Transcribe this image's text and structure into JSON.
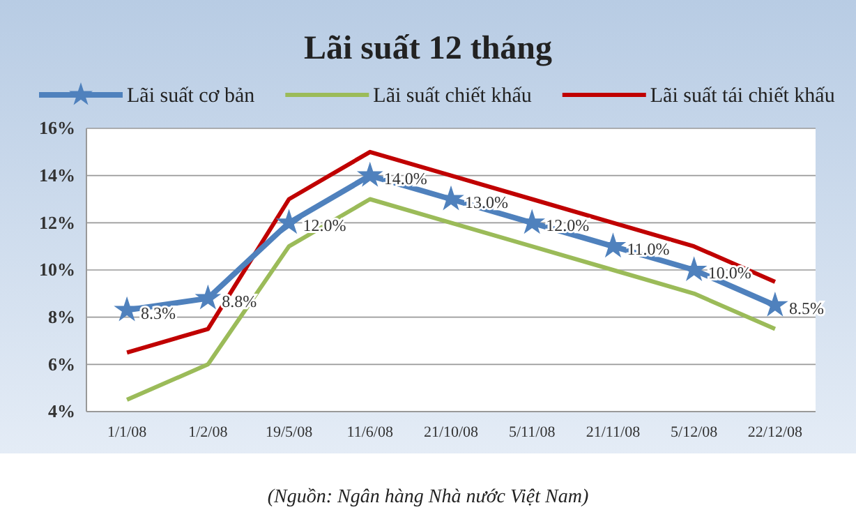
{
  "chart_data": {
    "type": "line",
    "title": "Lãi suất 12 tháng",
    "categories": [
      "1/1/08",
      "1/2/08",
      "19/5/08",
      "11/6/08",
      "21/10/08",
      "5/11/08",
      "21/11/08",
      "5/12/08",
      "22/12/08"
    ],
    "series": [
      {
        "name": "Lãi suất cơ bản",
        "color": "#4f81bd",
        "marker": "star",
        "values": [
          8.3,
          8.8,
          12.0,
          14.0,
          13.0,
          12.0,
          11.0,
          10.0,
          8.5
        ],
        "value_labels": [
          "8.3%",
          "8.8%",
          "12.0%",
          "14.0%",
          "13.0%",
          "12.0%",
          "11.0%",
          "10.0%",
          "8.5%"
        ]
      },
      {
        "name": "Lãi suất chiết khấu",
        "color": "#9bbb59",
        "values": [
          4.5,
          6,
          11,
          13,
          12,
          11,
          10,
          9,
          7.5
        ]
      },
      {
        "name": "Lãi suất tái chiết khấu",
        "color": "#c00000",
        "values": [
          6.5,
          7.5,
          13,
          15,
          14,
          13,
          12,
          11,
          9.5
        ]
      }
    ],
    "ylim": [
      4,
      16
    ],
    "yticks": [
      {
        "value": 4,
        "label": "4%"
      },
      {
        "value": 6,
        "label": "6%"
      },
      {
        "value": 8,
        "label": "8%"
      },
      {
        "value": 10,
        "label": "10%"
      },
      {
        "value": 12,
        "label": "12%"
      },
      {
        "value": 14,
        "label": "14%"
      },
      {
        "value": 16,
        "label": "16%"
      }
    ],
    "grid": "y",
    "legend": "top",
    "annotations": [
      "(Nguồn: Ngân hàng Nhà nước Việt Nam)"
    ]
  }
}
